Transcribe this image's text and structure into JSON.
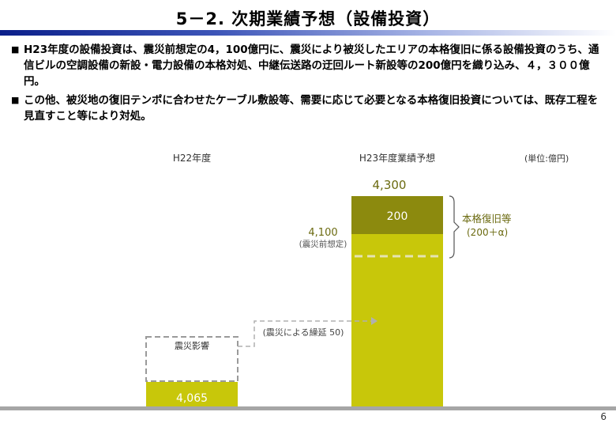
{
  "title": "5－2. 次期業績予想（設備投資）",
  "bullets": [
    "H23年度の設備投資は、震災前想定の4，100億円に、震災により被災したエリアの本格復旧に係る設備投資のうち、通信ビルの空調設備の新設・電力設備の本格対処、中継伝送路の迂回ルート新設等の200億円を織り込み、４，３００億円。",
    "この他、被災地の復旧テンポに合わせたケーブル敷設等、需要に応じて必要となる本格復旧投資については、既存工程を見直すこと等により対処。"
  ],
  "unit_label": "(単位:億円)",
  "page_number": "6",
  "colors": {
    "bar_fill": "#c8c70a",
    "addition_fill": "#8c8a0e",
    "title_rule": "#0b1f8a",
    "dashed_line": "#b0b0b0",
    "baseline": "#a6a6a6"
  },
  "chart_data": {
    "type": "bar",
    "categories": [
      "H22年度",
      "H23年度業績予想"
    ],
    "values": [
      4065,
      4300
    ],
    "ylim": [
      0,
      4300
    ],
    "base_segment_value": 4100,
    "base_segment_label": "4,100",
    "base_segment_sublabel": "(震災前想定)",
    "stacked_addition": {
      "value": 200,
      "label": "200"
    },
    "bar_labels": [
      "4,065",
      "4,300"
    ],
    "disaster_impact_label": "震災影響",
    "delay_value": 50,
    "delay_label": "(震災による繰延 50)",
    "bracket_label_lines": [
      "本格復旧等",
      "(200＋α)"
    ],
    "title": "",
    "xlabel": "",
    "ylabel": "",
    "grid": false,
    "legend": "none"
  }
}
